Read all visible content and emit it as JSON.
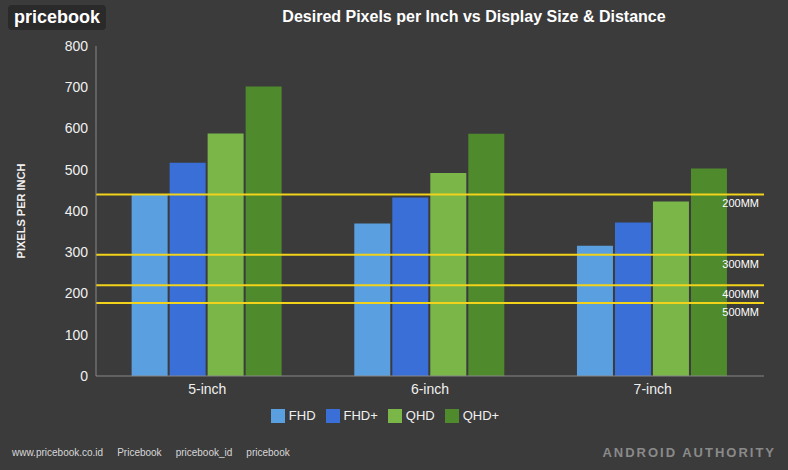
{
  "chart_data": {
    "type": "bar",
    "title": "Desired Pixels per Inch vs Display Size & Distance",
    "y_label": "PIXELS PER INCH",
    "categories": [
      "5-inch",
      "6-inch",
      "7-inch"
    ],
    "series": [
      {
        "name": "FHD",
        "color": "#5aa0e0",
        "values": [
          440,
          370,
          316
        ]
      },
      {
        "name": "FHD+",
        "color": "#3a6fd8",
        "values": [
          517,
          433,
          372
        ]
      },
      {
        "name": "QHD",
        "color": "#7ab648",
        "values": [
          588,
          492,
          423
        ]
      },
      {
        "name": "QHD+",
        "color": "#4f8a2c",
        "values": [
          702,
          587,
          503
        ]
      }
    ],
    "reference_lines": [
      {
        "label": "200MM",
        "value": 440,
        "color": "#f2d21b"
      },
      {
        "label": "300MM",
        "value": 294,
        "color": "#f2d21b"
      },
      {
        "label": "400MM",
        "value": 220,
        "color": "#f2d21b"
      },
      {
        "label": "500MM",
        "value": 177,
        "color": "#f2d21b"
      }
    ],
    "ylim": [
      0,
      800
    ],
    "yticks": [
      0,
      100,
      200,
      300,
      400,
      500,
      600,
      700,
      800
    ],
    "grid": false,
    "legend": "bottom",
    "logo": "pricebook",
    "watermark": "ANDROID AUTHORITY",
    "footer": [
      "www.pricebook.co.id",
      "Pricebook",
      "pricebook_id",
      "pricebook"
    ]
  }
}
